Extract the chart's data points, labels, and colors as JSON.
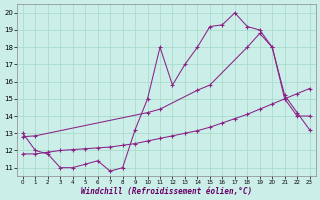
{
  "xlabel": "Windchill (Refroidissement éolien,°C)",
  "background_color": "#cceee8",
  "grid_color": "#aaddcc",
  "line_color": "#882288",
  "xlim": [
    -0.5,
    23.5
  ],
  "ylim": [
    10.5,
    20.5
  ],
  "yticks": [
    11,
    12,
    13,
    14,
    15,
    16,
    17,
    18,
    19,
    20
  ],
  "xticks": [
    0,
    1,
    2,
    3,
    4,
    5,
    6,
    7,
    8,
    9,
    10,
    11,
    12,
    13,
    14,
    15,
    16,
    17,
    18,
    19,
    20,
    21,
    22,
    23
  ],
  "line1_x": [
    0,
    1,
    2,
    3,
    4,
    5,
    6,
    7,
    8,
    9,
    10,
    11,
    12,
    13,
    14,
    15,
    16,
    17,
    18,
    19,
    20,
    21,
    22,
    23
  ],
  "line1_y": [
    13.0,
    12.0,
    11.8,
    11.0,
    11.0,
    11.2,
    11.4,
    10.8,
    11.0,
    13.2,
    15.0,
    18.0,
    15.8,
    17.0,
    18.0,
    19.2,
    19.3,
    20.0,
    19.2,
    19.0,
    18.0,
    15.0,
    14.0,
    14.0
  ],
  "line2_x": [
    0,
    1,
    2,
    3,
    4,
    5,
    6,
    7,
    8,
    9,
    10,
    11,
    12,
    13,
    14,
    15,
    16,
    17,
    18,
    19,
    20,
    21,
    22,
    23
  ],
  "line2_y": [
    11.8,
    11.8,
    11.9,
    12.0,
    12.05,
    12.1,
    12.15,
    12.2,
    12.3,
    12.4,
    12.55,
    12.7,
    12.85,
    13.0,
    13.15,
    13.35,
    13.6,
    13.85,
    14.1,
    14.4,
    14.7,
    15.0,
    15.3,
    15.6
  ],
  "line3_x": [
    0,
    1,
    10,
    11,
    14,
    15,
    18,
    19,
    20,
    21,
    22,
    23
  ],
  "line3_y": [
    12.8,
    12.85,
    14.2,
    14.4,
    15.5,
    15.8,
    18.0,
    18.8,
    18.0,
    15.2,
    14.2,
    13.2
  ]
}
